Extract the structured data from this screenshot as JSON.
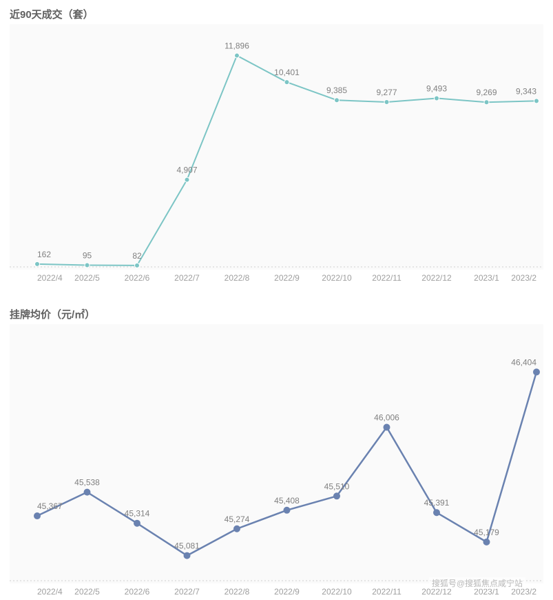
{
  "watermark": "搜狐号@搜狐焦点咸宁站",
  "chart1": {
    "type": "line",
    "title": "近90天成交（套）",
    "title_fontsize": 15,
    "title_color": "#606060",
    "plot_background": "#fafafa",
    "axis_label_color": "#9e9e9e",
    "axis_label_fontsize": 12,
    "value_label_color": "#808080",
    "value_label_fontsize": 12,
    "line_color": "#7cc5c5",
    "line_width": 2,
    "marker_radius": 3.5,
    "marker_fill": "#7cc5c5",
    "marker_stroke": "#ffffff",
    "baseline_color": "#d0d0d0",
    "baseline_dash": "2,3",
    "ylim": [
      0,
      12500
    ],
    "categories": [
      "2022/4",
      "2022/5",
      "2022/6",
      "2022/7",
      "2022/8",
      "2022/9",
      "2022/10",
      "2022/11",
      "2022/12",
      "2023/1",
      "2023/2"
    ],
    "values": [
      162,
      95,
      82,
      4907,
      11896,
      10401,
      9385,
      9277,
      9493,
      9269,
      9343
    ],
    "value_labels": [
      "162",
      "95",
      "82",
      "4,907",
      "11,896",
      "10,401",
      "9,385",
      "9,277",
      "9,493",
      "9,269",
      "9,343"
    ]
  },
  "chart2": {
    "type": "line",
    "title": "挂牌均价（元/㎡）",
    "title_fontsize": 15,
    "title_color": "#606060",
    "plot_background": "#fafafa",
    "axis_label_color": "#9e9e9e",
    "axis_label_fontsize": 12,
    "value_label_color": "#808080",
    "value_label_fontsize": 12,
    "line_color": "#6a82b0",
    "line_width": 2.5,
    "marker_radius": 4.5,
    "marker_fill": "#6a82b0",
    "marker_stroke": "#6a82b0",
    "baseline_color": "#d0d0d0",
    "baseline_dash": "2,3",
    "ylim": [
      44900,
      46600
    ],
    "categories": [
      "2022/4",
      "2022/5",
      "2022/6",
      "2022/7",
      "2022/8",
      "2022/9",
      "2022/10",
      "2022/11",
      "2022/12",
      "2023/1",
      "2023/2"
    ],
    "values": [
      45367,
      45538,
      45314,
      45081,
      45274,
      45408,
      45510,
      46006,
      45391,
      45179,
      46404
    ],
    "value_labels": [
      "45,367",
      "45,538",
      "45,314",
      "45,081",
      "45,274",
      "45,408",
      "45,510",
      "46,006",
      "45,391",
      "45,179",
      "46,404"
    ]
  },
  "layout": {
    "chart1_height": 380,
    "chart2_height": 400,
    "gap": 30,
    "plot_left_pad": 40,
    "plot_right_pad": 10,
    "plot_top_pad": 30,
    "plot_bottom_pad": 28
  }
}
